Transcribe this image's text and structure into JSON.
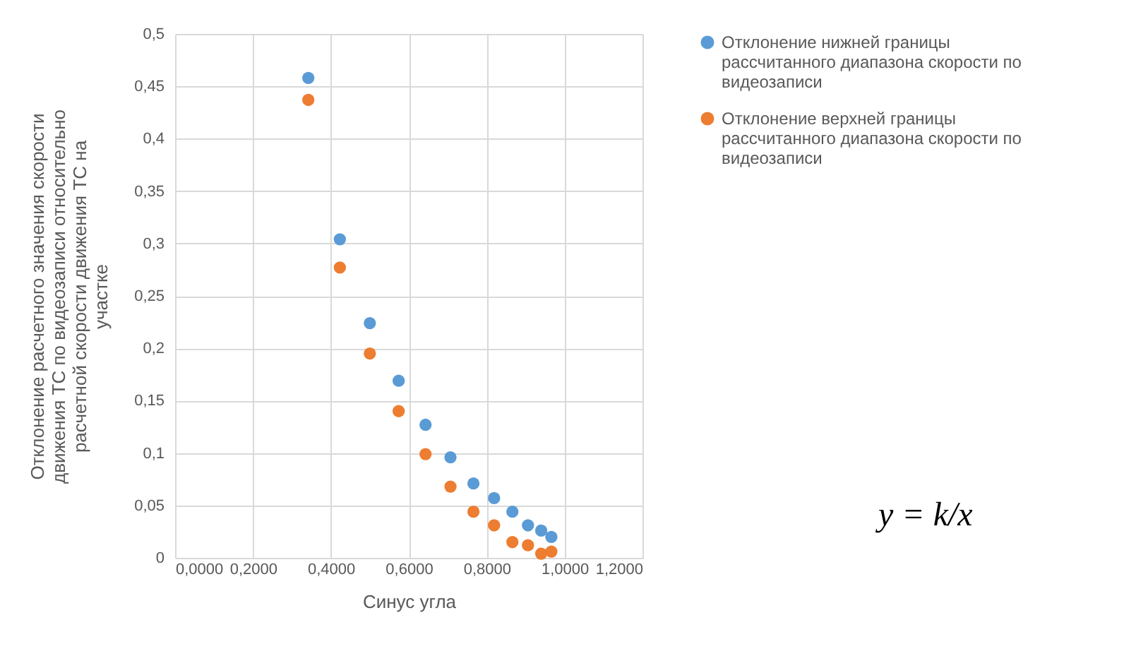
{
  "chart_data": {
    "type": "scatter",
    "xlabel": "Синус угла",
    "ylabel": "Отклонение расчетного значения скорости движения ТС по видеозаписи относительно расчетной скорости движения ТС на участке",
    "x": [
      0.342,
      0.423,
      0.5,
      0.574,
      0.643,
      0.707,
      0.766,
      0.819,
      0.866,
      0.906,
      0.94,
      0.966
    ],
    "series": [
      {
        "name": "Отклонение нижней границы рассчитанного диапазона скорости по видеозаписи",
        "color": "#5b9bd5",
        "values": [
          0.458,
          0.304,
          0.224,
          0.169,
          0.127,
          0.096,
          0.071,
          0.057,
          0.044,
          0.031,
          0.026,
          0.02
        ]
      },
      {
        "name": "Отклонение верхней границы рассчитанного диапазона скорости по видеозаписи",
        "color": "#ed7d31",
        "values": [
          0.437,
          0.277,
          0.195,
          0.14,
          0.099,
          0.068,
          0.044,
          0.031,
          0.015,
          0.012,
          0.004,
          0.006
        ]
      }
    ],
    "xlim": [
      0,
      1.2
    ],
    "xticks": [
      {
        "value": 0,
        "label": "0,0000"
      },
      {
        "value": 0.2,
        "label": "0,2000"
      },
      {
        "value": 0.4,
        "label": "0,4000"
      },
      {
        "value": 0.6,
        "label": "0,6000"
      },
      {
        "value": 0.8,
        "label": "0,8000"
      },
      {
        "value": 1,
        "label": "1,0000"
      },
      {
        "value": 1.2,
        "label": "1,2000"
      }
    ],
    "ylim": [
      0,
      0.5
    ],
    "yticks": [
      0,
      {
        "value": 0.05,
        "label": "0,05"
      },
      {
        "value": 0.1,
        "label": "0,1"
      },
      {
        "value": 0.15,
        "label": "0,15"
      },
      {
        "value": 0.2,
        "label": "0,2"
      },
      {
        "value": 0.25,
        "label": "0,25"
      },
      {
        "value": 0.3,
        "label": "0,3"
      },
      {
        "value": 0.35,
        "label": "0,35"
      },
      {
        "value": 0.4,
        "label": "0,4"
      },
      {
        "value": 0.45,
        "label": "0,45"
      },
      {
        "value": 0.5,
        "label": "0,5"
      }
    ],
    "grid": true,
    "legend": "right",
    "marker": "circle",
    "annotations": [
      "y = k/x"
    ]
  }
}
